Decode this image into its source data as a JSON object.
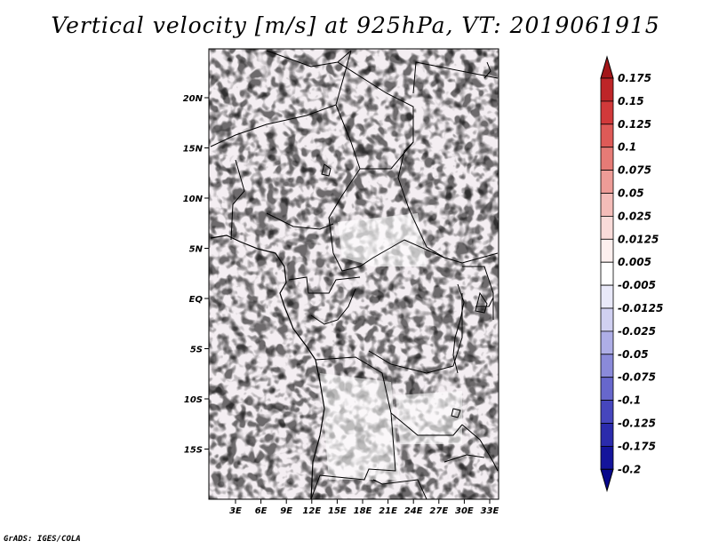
{
  "title": "Vertical velocity [m/s] at 925hPa, VT: 2019061915",
  "credit": "GrADS: IGES/COLA",
  "map": {
    "lon_labels": [
      "3E",
      "6E",
      "9E",
      "12E",
      "15E",
      "18E",
      "21E",
      "24E",
      "27E",
      "30E",
      "33E"
    ],
    "lat_labels": [
      "20N",
      "15N",
      "10N",
      "5N",
      "EQ",
      "5S",
      "10S",
      "15S"
    ]
  },
  "colorbar": {
    "levels": [
      "0.175",
      "0.15",
      "0.125",
      "0.1",
      "0.075",
      "0.05",
      "0.025",
      "0.0125",
      "0.005",
      "-0.005",
      "-0.0125",
      "-0.025",
      "-0.05",
      "-0.075",
      "-0.1",
      "-0.125",
      "-0.175",
      "-0.2"
    ],
    "colors": [
      "#a31619",
      "#be2528",
      "#d1393a",
      "#de5a57",
      "#e67b76",
      "#ed9c97",
      "#f4bcb8",
      "#f9dbd9",
      "#fdf0ef",
      "#ffffff",
      "#e9e9f9",
      "#d0d0f1",
      "#aeaee6",
      "#8a8ad9",
      "#6767cc",
      "#4646bd",
      "#2b2bac",
      "#14149b",
      "#08088c"
    ]
  },
  "icons": [
    "colorbar-up-arrow-icon",
    "colorbar-down-arrow-icon"
  ]
}
